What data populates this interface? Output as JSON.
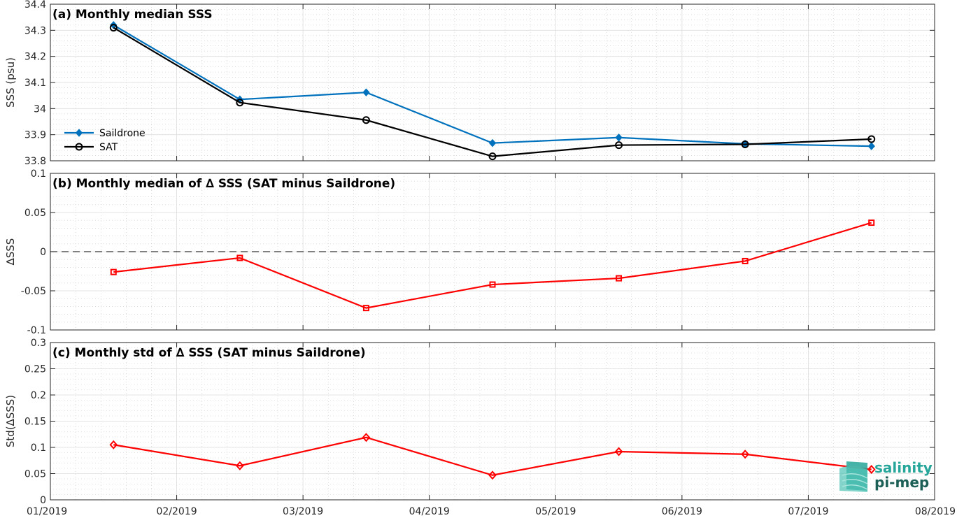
{
  "x_ticks": [
    "01/2019",
    "02/2019",
    "03/2019",
    "04/2019",
    "05/2019",
    "06/2019",
    "07/2019",
    "08/2019"
  ],
  "logo": {
    "line1": "salinity",
    "line2": "pi-mep",
    "color": "#26a69a"
  },
  "chart_data": [
    {
      "type": "line",
      "title": "(a) Monthly median SSS",
      "ylabel": "SSS (psu)",
      "ylim": [
        33.8,
        34.4
      ],
      "yticks": [
        33.8,
        33.9,
        34,
        34.1,
        34.2,
        34.3,
        34.4
      ],
      "ytick_labels": [
        "33.8",
        "33.9",
        "34",
        "34.1",
        "34.2",
        "34.3",
        "34.4"
      ],
      "x": [
        0.5,
        1.5,
        2.5,
        3.5,
        4.5,
        5.5,
        6.5
      ],
      "grid": true,
      "legend": "left",
      "series": [
        {
          "name": "Saildrone",
          "color": "#0072bd",
          "marker": "diamond-filled",
          "values": [
            34.32,
            34.035,
            34.062,
            33.868,
            33.889,
            33.865,
            33.856
          ]
        },
        {
          "name": "SAT",
          "color": "#000000",
          "marker": "circle",
          "values": [
            34.31,
            34.023,
            33.956,
            33.817,
            33.86,
            33.863,
            33.883
          ]
        }
      ]
    },
    {
      "type": "line",
      "title": "(b) Monthly median of ∆ SSS (SAT minus Saildrone)",
      "ylabel": "∆SSS",
      "ylim": [
        -0.1,
        0.1
      ],
      "yticks": [
        -0.1,
        -0.05,
        0,
        0.05,
        0.1
      ],
      "ytick_labels": [
        "-0.1",
        "-0.05",
        "0",
        "0.05",
        "0.1"
      ],
      "x": [
        0.5,
        1.5,
        2.5,
        3.5,
        4.5,
        5.5,
        6.5
      ],
      "grid": true,
      "zero_line": true,
      "series": [
        {
          "color": "#ff0000",
          "marker": "square",
          "values": [
            -0.026,
            -0.008,
            -0.072,
            -0.042,
            -0.034,
            -0.012,
            0.037
          ]
        }
      ]
    },
    {
      "type": "line",
      "title": "(c) Monthly std of ∆ SSS (SAT minus Saildrone)",
      "ylabel": "Std(∆SSS)",
      "ylim": [
        0,
        0.3
      ],
      "yticks": [
        0,
        0.05,
        0.1,
        0.15,
        0.2,
        0.25,
        0.3
      ],
      "ytick_labels": [
        "0",
        "0.05",
        "0.1",
        "0.15",
        "0.2",
        "0.25",
        "0.3"
      ],
      "x": [
        0.5,
        1.5,
        2.5,
        3.5,
        4.5,
        5.5,
        6.5
      ],
      "grid": true,
      "series": [
        {
          "color": "#ff0000",
          "marker": "diamond",
          "values": [
            0.105,
            0.065,
            0.119,
            0.047,
            0.092,
            0.087,
            0.058
          ]
        }
      ]
    }
  ]
}
